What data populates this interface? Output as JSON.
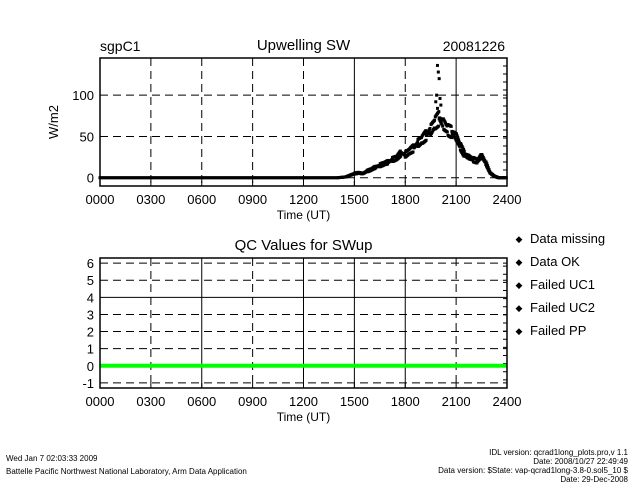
{
  "header": {
    "site": "sgpC1",
    "date": "20081226"
  },
  "chart_data": [
    {
      "type": "scatter",
      "title": "Upwelling SW",
      "xlabel": "Time (UT)",
      "ylabel": "W/m2",
      "xlim": [
        0,
        24
      ],
      "ylim": [
        -10,
        145
      ],
      "xticks": [
        "0000",
        "0300",
        "0600",
        "0900",
        "1200",
        "1500",
        "1800",
        "2100",
        "2400"
      ],
      "yticks": [
        {
          "v": 0,
          "label": "0"
        },
        {
          "v": 50,
          "label": "50"
        },
        {
          "v": 100,
          "label": "100"
        }
      ],
      "grid": true,
      "color": "#000000",
      "x": [
        0,
        1,
        2,
        3,
        4,
        5,
        6,
        7,
        8,
        9,
        10,
        11,
        12,
        13,
        14,
        14.5,
        14.75,
        15,
        15.25,
        15.5,
        15.75,
        16,
        16.25,
        16.5,
        16.75,
        17,
        17.25,
        17.5,
        17.75,
        18,
        18.25,
        18.5,
        18.75,
        19,
        19.25,
        19.5,
        19.75,
        20,
        20.25,
        20.5,
        20.75,
        21,
        21.25,
        21.5,
        21.75,
        22,
        22.25,
        22.5,
        22.75,
        23,
        23.25,
        23.5,
        24
      ],
      "y": [
        0,
        0,
        0,
        0,
        0,
        0,
        0,
        0,
        0,
        0,
        0,
        0,
        0,
        0,
        0,
        1,
        3,
        5,
        6,
        5,
        8,
        10,
        13,
        15,
        17,
        19,
        22,
        24,
        30,
        28,
        32,
        36,
        42,
        46,
        52,
        58,
        66,
        72,
        65,
        58,
        55,
        50,
        38,
        28,
        25,
        22,
        20,
        27,
        18,
        6,
        2,
        0,
        0
      ],
      "outliers_x": [
        19.9,
        19.95,
        20.0,
        19.85,
        20.05,
        19.8,
        20.1,
        19.9
      ],
      "outliers_y": [
        136,
        128,
        120,
        100,
        96,
        92,
        88,
        84
      ]
    },
    {
      "type": "line",
      "title": "QC Values for SWup",
      "xlabel": "Time (UT)",
      "ylabel": "",
      "xlim": [
        0,
        24
      ],
      "ylim": [
        -1.3,
        6.3
      ],
      "xticks": [
        "0000",
        "0300",
        "0600",
        "0900",
        "1200",
        "1500",
        "1800",
        "2100",
        "2400"
      ],
      "yticks": [
        {
          "v": -1,
          "label": "-1"
        },
        {
          "v": 0,
          "label": "0"
        },
        {
          "v": 1,
          "label": "1"
        },
        {
          "v": 2,
          "label": "2"
        },
        {
          "v": 3,
          "label": "3"
        },
        {
          "v": 4,
          "label": "4"
        },
        {
          "v": 5,
          "label": "5"
        },
        {
          "v": 6,
          "label": "6"
        }
      ],
      "grid": true,
      "series": [
        {
          "name": "Data OK",
          "color": "#00ff00",
          "x": [
            0,
            24
          ],
          "y": [
            0,
            0
          ]
        }
      ],
      "legend": {
        "placement": "right",
        "entries": [
          {
            "label": "Data missing",
            "color": "#000000"
          },
          {
            "label": "Data OK",
            "color": "#00ff00"
          },
          {
            "label": "Failed UC1",
            "color": "#ffff00"
          },
          {
            "label": "Failed UC2",
            "color": "#ff8c00"
          },
          {
            "label": "Failed PP",
            "color": "#ff0000"
          }
        ]
      }
    }
  ],
  "footer": {
    "timestamp": "Wed Jan  7 02:03:33 2009",
    "org": "Battelle Pacific Northwest National Laboratory, Arm Data Application",
    "idl_version": "IDL version: qcrad1long_plots.pro,v 1.1",
    "idl_date": "Date: 2008/10/27 22:49:49",
    "data_version": "Data version: $State: vap-qcrad1long-3.8-0.sol5_10 $",
    "data_date": "Date: 29-Dec-2008"
  }
}
